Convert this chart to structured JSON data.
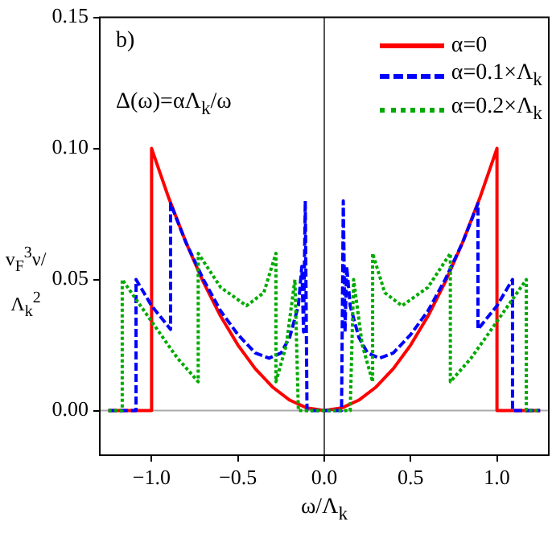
{
  "chart_data": {
    "type": "line",
    "xlabel": "ω/Λ$_{k}$",
    "ylabel": "v$_{F}$$^{3}$ν/Λ$_{k}$$^{2}$",
    "xlim": [
      -1.3,
      1.3
    ],
    "ylim": [
      -0.017,
      0.15
    ],
    "xticks": [
      {
        "value": -1,
        "label": "−1.0"
      },
      {
        "value": -0.5,
        "label": "−0.5"
      },
      {
        "value": 0,
        "label": "0.0"
      },
      {
        "value": 0.5,
        "label": "0.5"
      },
      {
        "value": 1,
        "label": "1.0"
      }
    ],
    "yticks": [
      {
        "value": 0,
        "label": "0.00"
      },
      {
        "value": 0.05,
        "label": "0.05"
      },
      {
        "value": 0.1,
        "label": "0.10"
      },
      {
        "value": 0.15,
        "label": "0.15"
      }
    ],
    "grid": false,
    "legend": "top right",
    "marker": "none",
    "annotations": [
      "b)",
      "Δ(ω)=αΛ$_{k}$/ω"
    ],
    "ref_lines": [
      {
        "axis": "x",
        "value": 0,
        "color": "#555555"
      },
      {
        "axis": "y",
        "value": 0,
        "color": "#aaaaaa"
      }
    ],
    "series": [
      {
        "name": "α=0",
        "color": "#ff0000",
        "line_style": "solid",
        "x": [
          -1.25,
          -1.0,
          -1.0,
          -0.9,
          -0.8,
          -0.7,
          -0.6,
          -0.5,
          -0.4,
          -0.3,
          -0.2,
          -0.1,
          0,
          0.1,
          0.2,
          0.3,
          0.4,
          0.5,
          0.6,
          0.7,
          0.8,
          0.9,
          1.0,
          1.0,
          1.25
        ],
        "values": [
          0,
          0,
          0.1,
          0.081,
          0.064,
          0.049,
          0.036,
          0.025,
          0.016,
          0.009,
          0.004,
          0.001,
          0,
          0.001,
          0.004,
          0.009,
          0.016,
          0.025,
          0.036,
          0.049,
          0.064,
          0.081,
          0.1,
          0,
          0
        ]
      },
      {
        "name": "α=0.1×Λ$_{k}$",
        "color": "#0000ff",
        "line_style": "dashed",
        "x": [
          -1.25,
          -1.09,
          -1.09,
          -1.0,
          -0.89,
          -0.89,
          -0.8,
          -0.7,
          -0.6,
          -0.5,
          -0.4,
          -0.32,
          -0.25,
          -0.2,
          -0.15,
          -0.13,
          -0.12,
          -0.11,
          -0.1,
          0.1,
          0.11,
          0.12,
          0.13,
          0.15,
          0.2,
          0.25,
          0.32,
          0.4,
          0.5,
          0.6,
          0.7,
          0.8,
          0.89,
          0.89,
          1.0,
          1.09,
          1.09,
          1.25
        ],
        "values": [
          0,
          0,
          0.05,
          0.04,
          0.031,
          0.079,
          0.064,
          0.05,
          0.038,
          0.029,
          0.022,
          0.02,
          0.022,
          0.028,
          0.04,
          0.055,
          0.03,
          0.08,
          0,
          0,
          0.08,
          0.03,
          0.055,
          0.04,
          0.028,
          0.022,
          0.02,
          0.022,
          0.029,
          0.038,
          0.05,
          0.064,
          0.079,
          0.031,
          0.04,
          0.05,
          0,
          0
        ]
      },
      {
        "name": "α=0.2×Λ$_{k}$",
        "color": "#00aa00",
        "line_style": "dotted",
        "x": [
          -1.25,
          -1.17,
          -1.17,
          -1.0,
          -0.85,
          -0.73,
          -0.73,
          -0.6,
          -0.45,
          -0.35,
          -0.28,
          -0.28,
          -0.22,
          -0.17,
          -0.15,
          0.15,
          0.17,
          0.22,
          0.28,
          0.28,
          0.35,
          0.45,
          0.6,
          0.73,
          0.73,
          0.85,
          1.0,
          1.17,
          1.17,
          1.25
        ],
        "values": [
          0,
          0,
          0.05,
          0.034,
          0.02,
          0.011,
          0.06,
          0.047,
          0.04,
          0.045,
          0.06,
          0.011,
          0.025,
          0.05,
          0,
          0,
          0.05,
          0.025,
          0.011,
          0.06,
          0.045,
          0.04,
          0.047,
          0.06,
          0.011,
          0.02,
          0.034,
          0.05,
          0,
          0
        ]
      }
    ]
  }
}
